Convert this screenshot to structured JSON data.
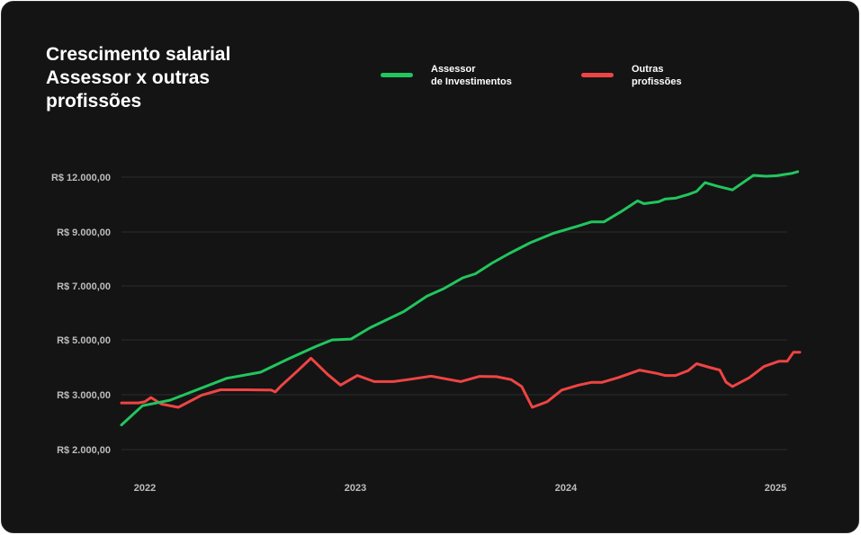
{
  "title_lines": [
    "Crescimento salarial",
    "Assessor x outras",
    "profissões"
  ],
  "legend": [
    {
      "lines": [
        "Assessor",
        "de Investimentos"
      ],
      "color": "#22c55e"
    },
    {
      "lines": [
        "Outras",
        "profissões"
      ],
      "color": "#ef4444"
    }
  ],
  "colors": {
    "background": "#141414",
    "grid": "#2c2c2c",
    "tick": "#bdbdbd"
  },
  "chart_data": {
    "type": "line",
    "y_axis_scale": "categorical levels (non-linear spacing)",
    "yticks": [
      {
        "value": 2000,
        "label": "R$ 2.000,00"
      },
      {
        "value": 3000,
        "label": "R$ 3.000,00"
      },
      {
        "value": 5000,
        "label": "R$ 5.000,00"
      },
      {
        "value": 7000,
        "label": "R$ 7.000,00"
      },
      {
        "value": 9000,
        "label": "R$ 9.000,00"
      },
      {
        "value": 12000,
        "label": "R$ 12.000,00"
      }
    ],
    "xticks": [
      {
        "value": 2022.0,
        "label": "2022"
      },
      {
        "value": 2023.0,
        "label": "2023"
      },
      {
        "value": 2024.0,
        "label": "2024"
      },
      {
        "value": 2025.0,
        "label": "2025"
      }
    ],
    "xlim": [
      2021.94,
      2025.12
    ],
    "ylim": [
      2000,
      12000
    ],
    "grid": true,
    "legend_position": "top",
    "series": [
      {
        "name": "Assessor de Investimentos",
        "color": "#22c55e",
        "points": [
          [
            2021.94,
            2450
          ],
          [
            2022.04,
            2800
          ],
          [
            2022.17,
            2900
          ],
          [
            2022.44,
            3600
          ],
          [
            2022.6,
            3820
          ],
          [
            2022.73,
            4300
          ],
          [
            2022.86,
            4750
          ],
          [
            2022.94,
            5000
          ],
          [
            2023.03,
            5030
          ],
          [
            2023.12,
            5450
          ],
          [
            2023.28,
            6050
          ],
          [
            2023.39,
            6620
          ],
          [
            2023.47,
            6900
          ],
          [
            2023.56,
            7300
          ],
          [
            2023.62,
            7450
          ],
          [
            2023.7,
            7850
          ],
          [
            2023.78,
            8200
          ],
          [
            2023.88,
            8600
          ],
          [
            2023.99,
            8950
          ],
          [
            2024.1,
            9300
          ],
          [
            2024.17,
            9550
          ],
          [
            2024.23,
            9550
          ],
          [
            2024.31,
            10100
          ],
          [
            2024.39,
            10700
          ],
          [
            2024.42,
            10550
          ],
          [
            2024.49,
            10650
          ],
          [
            2024.52,
            10800
          ],
          [
            2024.57,
            10850
          ],
          [
            2024.63,
            11050
          ],
          [
            2024.67,
            11220
          ],
          [
            2024.71,
            11700
          ],
          [
            2024.77,
            11500
          ],
          [
            2024.84,
            11300
          ],
          [
            2024.94,
            12100
          ],
          [
            2025.0,
            12050
          ],
          [
            2025.05,
            12080
          ],
          [
            2025.12,
            12200
          ],
          [
            2025.15,
            12300
          ]
        ]
      },
      {
        "name": "Outras profissões",
        "color": "#ef4444",
        "points": [
          [
            2021.94,
            2850
          ],
          [
            2022.02,
            2850
          ],
          [
            2022.05,
            2870
          ],
          [
            2022.08,
            2950
          ],
          [
            2022.13,
            2830
          ],
          [
            2022.21,
            2770
          ],
          [
            2022.32,
            2990
          ],
          [
            2022.41,
            3180
          ],
          [
            2022.53,
            3180
          ],
          [
            2022.63,
            3170
          ],
          [
            2022.65,
            3170
          ],
          [
            2022.67,
            3100
          ],
          [
            2022.7,
            3340
          ],
          [
            2022.77,
            3830
          ],
          [
            2022.84,
            4330
          ],
          [
            2022.92,
            3730
          ],
          [
            2022.98,
            3350
          ],
          [
            2023.06,
            3700
          ],
          [
            2023.14,
            3480
          ],
          [
            2023.23,
            3480
          ],
          [
            2023.3,
            3550
          ],
          [
            2023.41,
            3680
          ],
          [
            2023.55,
            3480
          ],
          [
            2023.64,
            3670
          ],
          [
            2023.72,
            3660
          ],
          [
            2023.79,
            3550
          ],
          [
            2023.84,
            3300
          ],
          [
            2023.89,
            2770
          ],
          [
            2023.96,
            2870
          ],
          [
            2024.03,
            3170
          ],
          [
            2024.11,
            3350
          ],
          [
            2024.17,
            3450
          ],
          [
            2024.22,
            3450
          ],
          [
            2024.3,
            3630
          ],
          [
            2024.4,
            3900
          ],
          [
            2024.48,
            3780
          ],
          [
            2024.52,
            3700
          ],
          [
            2024.57,
            3700
          ],
          [
            2024.63,
            3880
          ],
          [
            2024.67,
            4130
          ],
          [
            2024.73,
            4000
          ],
          [
            2024.78,
            3900
          ],
          [
            2024.81,
            3460
          ],
          [
            2024.84,
            3300
          ],
          [
            2024.92,
            3620
          ],
          [
            2024.99,
            4030
          ],
          [
            2025.06,
            4220
          ],
          [
            2025.1,
            4220
          ],
          [
            2025.13,
            4550
          ],
          [
            2025.16,
            4550
          ]
        ]
      }
    ]
  }
}
